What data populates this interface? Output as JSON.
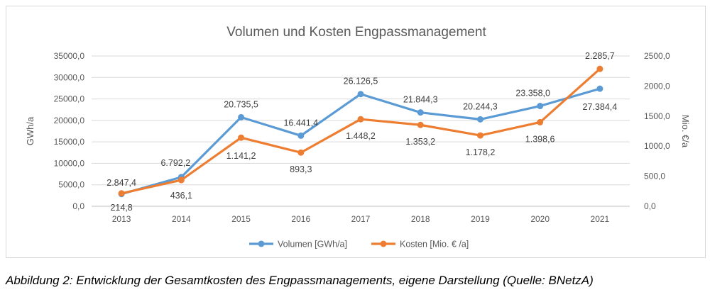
{
  "chart_data": {
    "type": "line",
    "title": "Volumen und Kosten Engpassmanagement",
    "categories": [
      "2013",
      "2014",
      "2015",
      "2016",
      "2017",
      "2018",
      "2019",
      "2020",
      "2021"
    ],
    "ylabel_left": "GWh/a",
    "ylabel_right": "Mio. €/a",
    "yticks_left": [
      "0,0",
      "5000,0",
      "10000,0",
      "15000,0",
      "20000,0",
      "25000,0",
      "30000,0",
      "35000,0"
    ],
    "yticks_right": [
      "0,0",
      "500,0",
      "1000,0",
      "1500,0",
      "2000,0",
      "2500,0"
    ],
    "ylim_left": [
      0,
      35000
    ],
    "ylim_right": [
      0,
      2500
    ],
    "grid": true,
    "legend_position": "bottom",
    "series": [
      {
        "name": "Volumen [GWh/a]",
        "axis": "left",
        "color": "#5B9BD5",
        "values": [
          2847.4,
          6792.2,
          20735.5,
          16441.4,
          26126.5,
          21844.3,
          20244.3,
          23358.0,
          27384.4
        ],
        "labels": [
          "2.847,4",
          "6.792,2",
          "20.735,5",
          "16.441,4",
          "26.126,5",
          "21.844,3",
          "20.244,3",
          "23.358,0",
          "27.384,4"
        ]
      },
      {
        "name": "Kosten [Mio. € /a]",
        "axis": "right",
        "color": "#ED7D31",
        "values": [
          214.8,
          436.1,
          1141.2,
          893.3,
          1448.2,
          1353.2,
          1178.2,
          1398.6,
          2285.7
        ],
        "labels": [
          "214,8",
          "436,1",
          "1.141,2",
          "893,3",
          "1.448,2",
          "1.353,2",
          "1.178,2",
          "1.398,6",
          "2.285,7"
        ]
      }
    ]
  },
  "caption": "Abbildung 2: Entwicklung der Gesamtkosten des Engpassmanagements, eigene Darstellung (Quelle: BNetzA)"
}
